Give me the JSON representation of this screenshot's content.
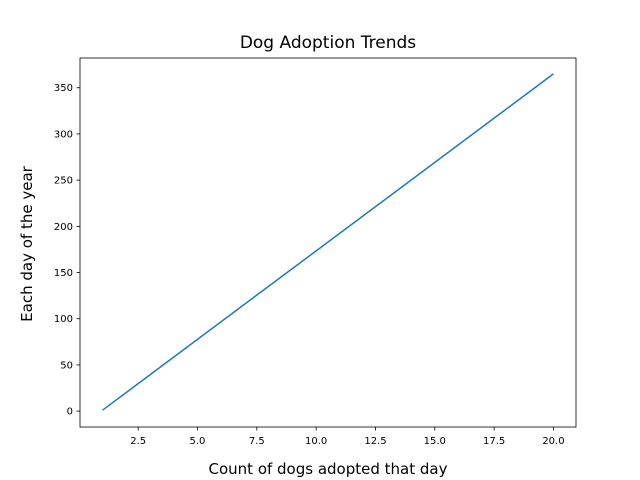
{
  "chart_data": {
    "type": "line",
    "title": "Dog Adoption Trends",
    "xlabel": "Count of dogs adopted that day",
    "ylabel": "Each day of the year",
    "xlim": [
      0.05,
      20.95
    ],
    "ylim": [
      -17.2,
      382.2
    ],
    "xticks": [
      2.5,
      5.0,
      7.5,
      10.0,
      12.5,
      15.0,
      17.5,
      20.0
    ],
    "xtick_labels": [
      "2.5",
      "5.0",
      "7.5",
      "10.0",
      "12.5",
      "15.0",
      "17.5",
      "20.0"
    ],
    "yticks": [
      0,
      50,
      100,
      150,
      200,
      250,
      300,
      350
    ],
    "ytick_labels": [
      "0",
      "50",
      "100",
      "150",
      "200",
      "250",
      "300",
      "350"
    ],
    "grid": false,
    "series": [
      {
        "color": "#1f77b4",
        "x": [
          1,
          20
        ],
        "y": [
          1,
          365
        ]
      }
    ]
  }
}
